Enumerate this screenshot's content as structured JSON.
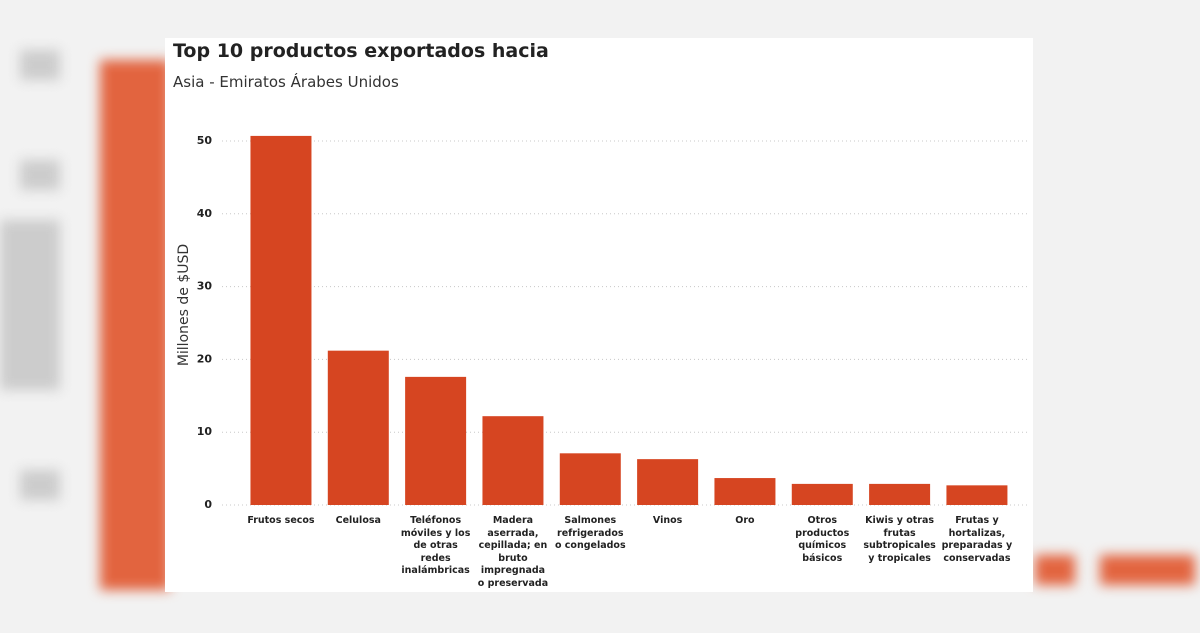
{
  "chart_data": {
    "type": "bar",
    "title": "Top 10 productos exportados hacia",
    "subtitle": "Asia - Emiratos Árabes Unidos",
    "y_label": "Millones de $USD",
    "categories": [
      "Frutos secos",
      "Celulosa",
      "Teléfonos móviles y los de otras redes inalámbricas",
      "Madera aserrada, cepillada; en bruto impregnada o preservada",
      "Salmones refrigerados o congelados",
      "Vinos",
      "Oro",
      "Otros productos químicos básicos",
      "Kiwis y otras frutas subtropicales y tropicales",
      "Frutas y hortalizas, preparadas y conservadas"
    ],
    "values": [
      50.7,
      21.2,
      17.6,
      12.2,
      7.1,
      6.3,
      3.7,
      2.9,
      2.9,
      2.7
    ],
    "color": "#d64521",
    "ylim": [
      0,
      52
    ],
    "yticks": [
      0,
      10,
      20,
      30,
      40,
      50
    ],
    "grid": true
  }
}
